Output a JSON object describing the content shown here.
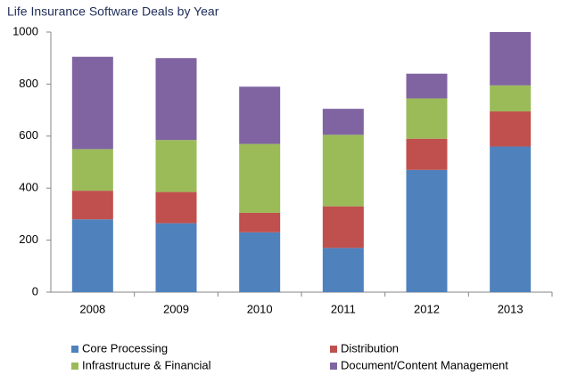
{
  "chart_data": {
    "type": "stacked_bar",
    "title": "Life Insurance Software Deals by Year",
    "categories": [
      "2008",
      "2009",
      "2010",
      "2011",
      "2012",
      "2013"
    ],
    "series": [
      {
        "name": "Core Processing",
        "color": "#4f81bd",
        "values": [
          280,
          265,
          230,
          170,
          470,
          560
        ]
      },
      {
        "name": "Distribution",
        "color": "#c0504d",
        "values": [
          110,
          120,
          75,
          160,
          120,
          135
        ]
      },
      {
        "name": "Infrastructure & Financial",
        "color": "#9bbb59",
        "values": [
          160,
          200,
          265,
          275,
          155,
          100
        ]
      },
      {
        "name": "Document/Content Management",
        "color": "#8064a2",
        "values": [
          355,
          315,
          220,
          100,
          95,
          205
        ]
      }
    ],
    "ylim": [
      0,
      1000
    ],
    "yticks": [
      0,
      200,
      400,
      600,
      800,
      1000
    ],
    "grid": false,
    "legend": "bottom"
  }
}
